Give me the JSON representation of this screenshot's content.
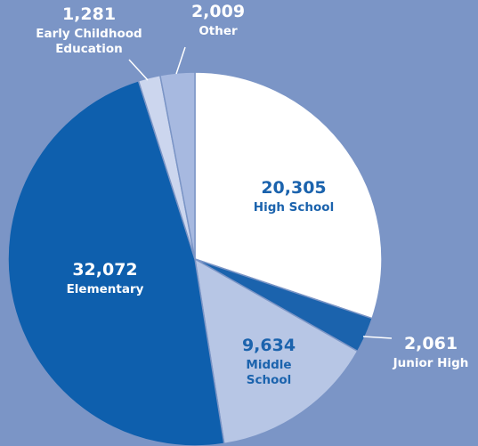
{
  "chart_data": {
    "type": "pie",
    "start_angle_deg": 0,
    "direction": "clockwise",
    "slices": [
      {
        "label": "High School",
        "label_lines": [
          "High School"
        ],
        "value": 20305,
        "value_text": "20,305",
        "color": "#ffffff",
        "label_color": "#1b63ad"
      },
      {
        "label": "Junior High",
        "label_lines": [
          "Junior High"
        ],
        "value": 2061,
        "value_text": "2,061",
        "color": "#1b63ad",
        "label_color": "#ffffff"
      },
      {
        "label": "Middle School",
        "label_lines": [
          "Middle",
          "School"
        ],
        "value": 9634,
        "value_text": "9,634",
        "color": "#b7c6e5",
        "label_color": "#1b63ad"
      },
      {
        "label": "Elementary",
        "label_lines": [
          "Elementary"
        ],
        "value": 32072,
        "value_text": "32,072",
        "color": "#0e5fad",
        "label_color": "#ffffff"
      },
      {
        "label": "Early Childhood Education",
        "label_lines": [
          "Early Childhood",
          "Education"
        ],
        "value": 1281,
        "value_text": "1,281",
        "color": "#ccd6ee",
        "label_color": "#ffffff"
      },
      {
        "label": "Other",
        "label_lines": [
          "Other"
        ],
        "value": 2009,
        "value_text": "2,009",
        "color": "#a7b9e0",
        "label_color": "#ffffff"
      }
    ],
    "background_color": "#7b95c6",
    "leader_line_color": "#ffffff"
  }
}
